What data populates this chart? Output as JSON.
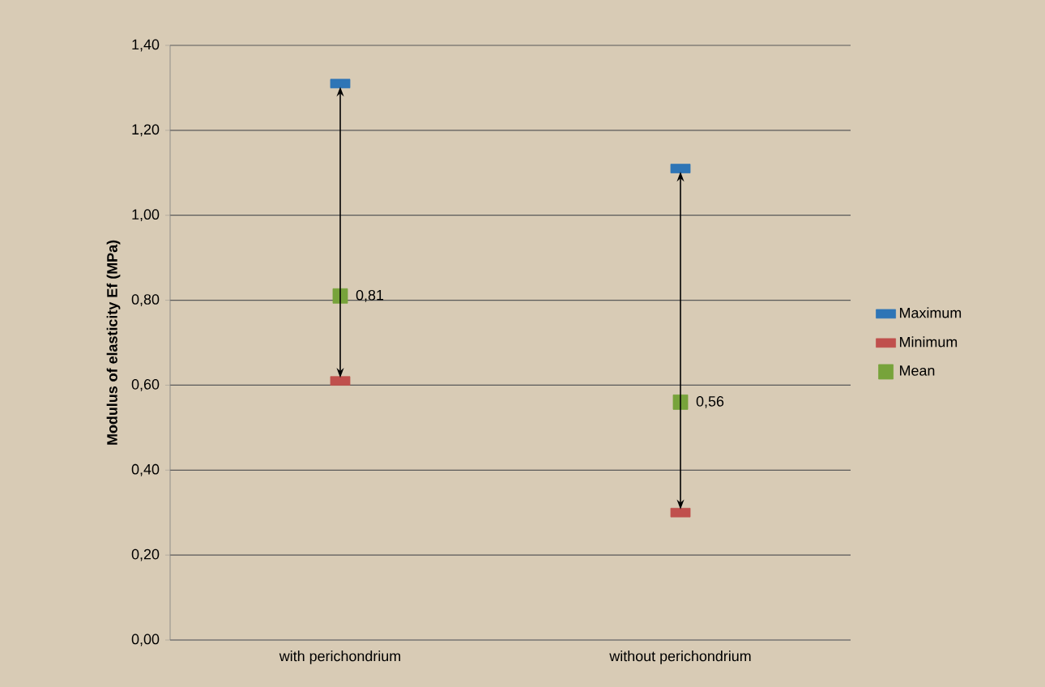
{
  "chart_data": {
    "type": "scatter",
    "ylabel": "Modulus of elasticity Ef (MPa)",
    "categories": [
      "with perichondrium",
      "without perichondrium"
    ],
    "series": [
      {
        "name": "Maximum",
        "color": "#2e75b6",
        "values": [
          1.31,
          1.11
        ]
      },
      {
        "name": "Minimum",
        "color": "#c0504d",
        "values": [
          0.61,
          0.3
        ]
      },
      {
        "name": "Mean",
        "color": "#77a33b",
        "marker": "square",
        "values": [
          0.81,
          0.56
        ],
        "value_labels": [
          "0,81",
          "0,56"
        ]
      }
    ],
    "ylim": [
      0,
      1.4
    ],
    "yticks": [
      {
        "value": 0,
        "label": "0,00"
      },
      {
        "value": 0.2,
        "label": "0,20"
      },
      {
        "value": 0.4,
        "label": "0,40"
      },
      {
        "value": 0.6,
        "label": "0,60"
      },
      {
        "value": 0.8,
        "label": "0,80"
      },
      {
        "value": 1.0,
        "label": "1,00"
      },
      {
        "value": 1.2,
        "label": "1,20"
      },
      {
        "value": 1.4,
        "label": "1,40"
      }
    ],
    "grid": "y",
    "legend": "right"
  }
}
